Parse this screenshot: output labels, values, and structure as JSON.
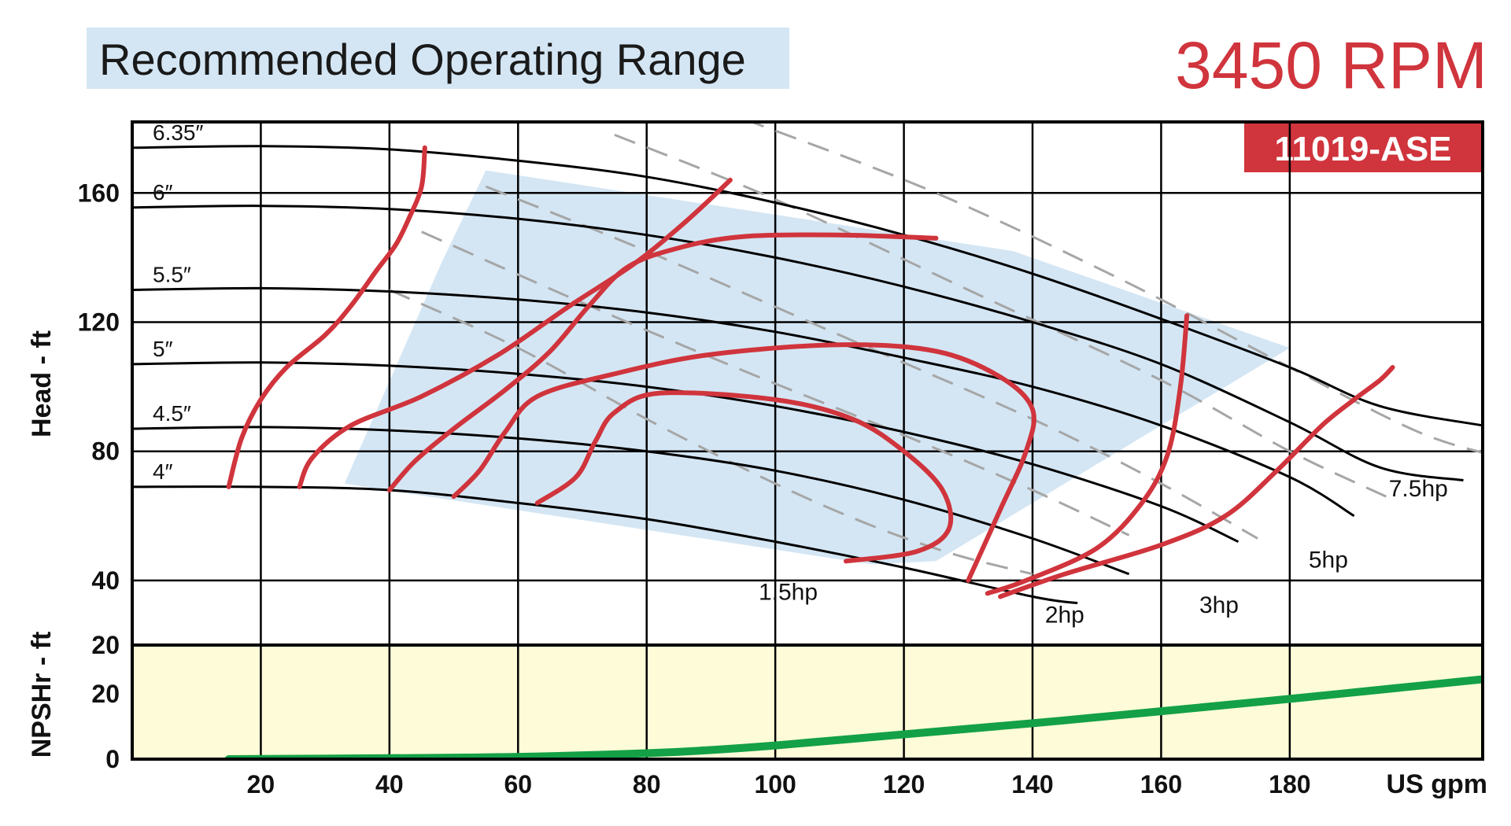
{
  "header": {
    "title": "Recommended Operating Range",
    "rpm": "3450 RPM",
    "model": "11019-ASE"
  },
  "colors": {
    "title_bg": "#d4e6f4",
    "rpm": "#d0343c",
    "model_bg": "#d0343c",
    "efficiency": "#d0343c",
    "npsh": "#13a046",
    "npsh_bg": "#fdfbd8",
    "range": "#d4e6f4",
    "hp_dashed": "#a6a6a6"
  },
  "chart_data": {
    "type": "line",
    "x_axis": {
      "label": "US gpm",
      "range": [
        0,
        210
      ],
      "ticks": [
        20,
        40,
        60,
        80,
        100,
        120,
        140,
        160,
        180
      ]
    },
    "head_axis": {
      "label": "Head - ft",
      "range": [
        20,
        182
      ],
      "ticks": [
        20,
        40,
        80,
        120,
        160
      ],
      "grid": [
        40,
        80,
        120,
        160
      ]
    },
    "npsh_axis": {
      "label": "NPSHr - ft",
      "range": [
        0,
        35
      ],
      "ticks": [
        0,
        20
      ]
    },
    "impeller_curves": [
      {
        "label": "6.35″",
        "points": [
          [
            0,
            174
          ],
          [
            20,
            174.5
          ],
          [
            40,
            173.5
          ],
          [
            60,
            170
          ],
          [
            80,
            165
          ],
          [
            100,
            157
          ],
          [
            120,
            147
          ],
          [
            140,
            135
          ],
          [
            160,
            121
          ],
          [
            180,
            106
          ],
          [
            194,
            94
          ],
          [
            210,
            88
          ]
        ]
      },
      {
        "label": "6″",
        "points": [
          [
            0,
            155.5
          ],
          [
            20,
            156
          ],
          [
            40,
            155
          ],
          [
            60,
            152
          ],
          [
            80,
            147
          ],
          [
            100,
            140
          ],
          [
            120,
            131
          ],
          [
            140,
            120
          ],
          [
            160,
            107
          ],
          [
            180,
            89
          ],
          [
            194,
            75
          ],
          [
            207,
            71
          ]
        ]
      },
      {
        "label": "5.5″",
        "points": [
          [
            0,
            130
          ],
          [
            20,
            130.5
          ],
          [
            40,
            129.5
          ],
          [
            60,
            127
          ],
          [
            80,
            123
          ],
          [
            100,
            117
          ],
          [
            120,
            109
          ],
          [
            140,
            100
          ],
          [
            160,
            88
          ],
          [
            180,
            72
          ],
          [
            190,
            60
          ]
        ]
      },
      {
        "label": "5″",
        "points": [
          [
            0,
            107
          ],
          [
            20,
            107.5
          ],
          [
            40,
            106.5
          ],
          [
            60,
            104
          ],
          [
            80,
            100
          ],
          [
            100,
            94
          ],
          [
            120,
            86
          ],
          [
            140,
            76
          ],
          [
            160,
            63
          ],
          [
            172,
            52
          ]
        ]
      },
      {
        "label": "4.5″",
        "points": [
          [
            0,
            87
          ],
          [
            20,
            87.5
          ],
          [
            40,
            86.5
          ],
          [
            60,
            84
          ],
          [
            80,
            80
          ],
          [
            100,
            74
          ],
          [
            120,
            65
          ],
          [
            140,
            53
          ],
          [
            155,
            42
          ]
        ]
      },
      {
        "label": "4″",
        "points": [
          [
            0,
            69
          ],
          [
            20,
            69
          ],
          [
            40,
            68
          ],
          [
            60,
            64
          ],
          [
            80,
            59
          ],
          [
            100,
            52
          ],
          [
            120,
            44
          ],
          [
            140,
            35
          ],
          [
            147,
            33
          ]
        ]
      }
    ],
    "hp_curves": [
      {
        "label": "1.5hp",
        "points": [
          [
            40,
            130
          ],
          [
            60,
            112
          ],
          [
            80,
            90
          ],
          [
            100,
            70
          ],
          [
            115,
            57
          ],
          [
            128,
            48
          ],
          [
            140,
            42
          ]
        ]
      },
      {
        "label": "2hp",
        "points": [
          [
            45,
            148
          ],
          [
            70,
            126
          ],
          [
            95,
            105
          ],
          [
            120,
            85
          ],
          [
            140,
            68
          ],
          [
            155,
            54
          ]
        ]
      },
      {
        "label": "3hp",
        "points": [
          [
            55,
            162
          ],
          [
            80,
            142
          ],
          [
            110,
            116
          ],
          [
            140,
            90
          ],
          [
            160,
            70
          ],
          [
            175,
            53
          ]
        ]
      },
      {
        "label": "5hp",
        "points": [
          [
            75,
            178
          ],
          [
            100,
            158
          ],
          [
            130,
            130
          ],
          [
            160,
            102
          ],
          [
            180,
            80
          ],
          [
            195,
            66
          ]
        ]
      },
      {
        "label": "7.5hp",
        "points": [
          [
            95,
            183
          ],
          [
            125,
            160
          ],
          [
            155,
            132
          ],
          [
            180,
            106
          ],
          [
            200,
            86
          ],
          [
            213,
            78
          ]
        ]
      }
    ],
    "hp_labels": [
      {
        "label": "1.5hp",
        "x": 102,
        "y": 34
      },
      {
        "label": "2hp",
        "x": 145,
        "y": 27
      },
      {
        "label": "3hp",
        "x": 169,
        "y": 30
      },
      {
        "label": "5hp",
        "x": 186,
        "y": 44
      },
      {
        "label": "7.5hp",
        "x": 200,
        "y": 66
      }
    ],
    "efficiency_curves": [
      {
        "points": [
          [
            15,
            69
          ],
          [
            17,
            84
          ],
          [
            20,
            96
          ],
          [
            24,
            106
          ],
          [
            30,
            116
          ],
          [
            34,
            125
          ],
          [
            38,
            136
          ],
          [
            41,
            144
          ],
          [
            43,
            152
          ],
          [
            45,
            162
          ],
          [
            45.5,
            174
          ]
        ]
      },
      {
        "points": [
          [
            26,
            69
          ],
          [
            28,
            78
          ],
          [
            34,
            88
          ],
          [
            45,
            97
          ],
          [
            57,
            110
          ],
          [
            68,
            125
          ],
          [
            78,
            138
          ],
          [
            86,
            151
          ],
          [
            93,
            164
          ]
        ]
      },
      {
        "points": [
          [
            40,
            68
          ],
          [
            44,
            77
          ],
          [
            50,
            87
          ],
          [
            58,
            99
          ],
          [
            65,
            111
          ],
          [
            71,
            125
          ],
          [
            77,
            137
          ],
          [
            85,
            143
          ],
          [
            95,
            146.5
          ],
          [
            110,
            147
          ],
          [
            125,
            146
          ]
        ]
      },
      {
        "points": [
          [
            50,
            66
          ],
          [
            54,
            74
          ],
          [
            58,
            86
          ],
          [
            63,
            97
          ],
          [
            75,
            104
          ],
          [
            90,
            110
          ],
          [
            110,
            113
          ],
          [
            125,
            111
          ],
          [
            135,
            103
          ],
          [
            140,
            93
          ],
          [
            139,
            80
          ],
          [
            135,
            62
          ],
          [
            130,
            40
          ]
        ]
      },
      {
        "points": [
          [
            63,
            64
          ],
          [
            69,
            72
          ],
          [
            72,
            83
          ],
          [
            75,
            92
          ],
          [
            82,
            98
          ],
          [
            100,
            96
          ],
          [
            112,
            90
          ],
          [
            120,
            80
          ],
          [
            126,
            68
          ],
          [
            127,
            56
          ],
          [
            122,
            49
          ],
          [
            111,
            46
          ]
        ]
      },
      {
        "points": [
          [
            133,
            36
          ],
          [
            139,
            40
          ],
          [
            150,
            50
          ],
          [
            157,
            64
          ],
          [
            161,
            79
          ],
          [
            163,
            100
          ],
          [
            164,
            122
          ]
        ]
      },
      {
        "points": [
          [
            135,
            35
          ],
          [
            145,
            42
          ],
          [
            160,
            51
          ],
          [
            170,
            60
          ],
          [
            178,
            74
          ],
          [
            185,
            88
          ],
          [
            190,
            96
          ],
          [
            194,
            102
          ],
          [
            196,
            106
          ]
        ]
      }
    ],
    "operating_range": [
      [
        33,
        70
      ],
      [
        48,
        138
      ],
      [
        55,
        167
      ],
      [
        137,
        142
      ],
      [
        180,
        112
      ],
      [
        125,
        46
      ],
      [
        115,
        45
      ]
    ],
    "npsh_curve": {
      "points": [
        [
          15,
          0
        ],
        [
          40,
          0.3
        ],
        [
          60,
          0.7
        ],
        [
          80,
          1.8
        ],
        [
          90,
          2.8
        ],
        [
          100,
          4.2
        ],
        [
          120,
          7.6
        ],
        [
          140,
          11
        ],
        [
          160,
          14.7
        ],
        [
          180,
          18.5
        ],
        [
          200,
          22.5
        ],
        [
          210,
          24.5
        ]
      ]
    }
  }
}
